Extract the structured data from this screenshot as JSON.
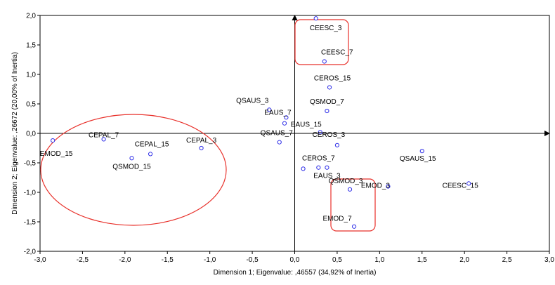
{
  "chart_data": {
    "type": "scatter",
    "xlabel": "Dimension 1; Eigenvalue: ,46557 (34,92% of Inertia)",
    "ylabel": "Dimension 2; Eigenvalue: ,26672 (20,00% of Inertia)",
    "xlim": [
      -3.0,
      3.0
    ],
    "ylim": [
      -2.0,
      2.0
    ],
    "x_ticks": [
      -3.0,
      -2.5,
      -2.0,
      -1.5,
      -1.0,
      -0.5,
      0.0,
      0.5,
      1.0,
      1.5,
      2.0,
      2.5,
      3.0
    ],
    "x_tick_labels": [
      "-3,0",
      "-2,5",
      "-2,0",
      "-1,5",
      "-1,0",
      "-0,5",
      "0,0",
      "0,5",
      "1,0",
      "1,5",
      "2,0",
      "2,5",
      "3,0"
    ],
    "y_ticks": [
      2.0,
      1.5,
      1.0,
      0.5,
      0.0,
      -0.5,
      -1.0,
      -1.5,
      -2.0
    ],
    "y_tick_labels": [
      "2,0",
      "1,5",
      "1,0",
      "0,5",
      "0,0",
      "-0,5",
      "-1,0",
      "-1,5",
      "-2,0"
    ],
    "grid": false,
    "legend": "none",
    "marker_color": "#2e2ee8",
    "highlight_color": "#e8302a",
    "points": [
      {
        "label": "CEESC_3",
        "x": 0.25,
        "y": 1.95
      },
      {
        "label": "CEESC_7",
        "x": 0.35,
        "y": 1.22
      },
      {
        "label": "CEROS_15",
        "x": 0.41,
        "y": 0.78
      },
      {
        "label": "QSMOD_7",
        "x": 0.38,
        "y": 0.38
      },
      {
        "label": "QSAUS_3",
        "x": -0.3,
        "y": 0.4
      },
      {
        "label": "EAUS_7",
        "x": -0.1,
        "y": 0.27
      },
      {
        "label": "",
        "x": -0.12,
        "y": 0.17
      },
      {
        "label": "EAUS_15",
        "x": 0.3,
        "y": 0.02
      },
      {
        "label": "QSAUS_7",
        "x": -0.18,
        "y": -0.15
      },
      {
        "label": "CEROS_3",
        "x": 0.5,
        "y": -0.2
      },
      {
        "label": "EAUS_3",
        "x": 0.38,
        "y": -0.58
      },
      {
        "label": "CEROS_7",
        "x": 0.28,
        "y": -0.58
      },
      {
        "label": "",
        "x": 0.1,
        "y": -0.6
      },
      {
        "label": "QSAUS_15",
        "x": 1.5,
        "y": -0.3
      },
      {
        "label": "QSMOD_3",
        "x": 0.65,
        "y": -0.95
      },
      {
        "label": "EMOD_3",
        "x": 1.1,
        "y": -0.9
      },
      {
        "label": "CEESC_15",
        "x": 2.05,
        "y": -0.85
      },
      {
        "label": "EMOD_7",
        "x": 0.7,
        "y": -1.58
      },
      {
        "label": "CEPAL_7",
        "x": -2.25,
        "y": -0.1
      },
      {
        "label": "CEPAL_15",
        "x": -1.7,
        "y": -0.35
      },
      {
        "label": "CEPAL_3",
        "x": -1.1,
        "y": -0.25
      },
      {
        "label": "QSMOD_15",
        "x": -1.92,
        "y": -0.42
      },
      {
        "label": "EMOD_15",
        "x": -2.85,
        "y": -0.12
      }
    ]
  }
}
